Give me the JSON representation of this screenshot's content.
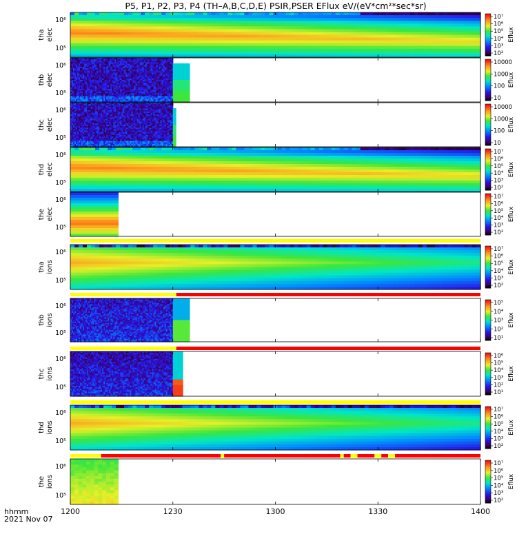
{
  "title": "P5, P1, P2, P3, P4 (TH–A,B,C,D,E) PSIR,PSER EFlux eV/(eV*cm²*sec*sr)",
  "footer": {
    "time_label": "hhmm",
    "date_label": "2021 Nov 07"
  },
  "chart_data": {
    "type": "heatmap",
    "xlabel": "hhmm",
    "x_range": [
      "12:00",
      "14:00"
    ],
    "x_ticks": [
      "1200",
      "1230",
      "1300",
      "1330",
      "1400"
    ],
    "colorbar_label": "Eflux",
    "panels": [
      {
        "id": "tha_elec",
        "label_top": "tha",
        "label_bottom": "elec",
        "y_ticks": [
          "10⁵",
          "10⁶"
        ],
        "cb_ticks": [
          "10²",
          "10³",
          "10⁴",
          "10⁵",
          "10⁶",
          "10⁷"
        ],
        "coverage_end": "14:00",
        "profile": "elec_full"
      },
      {
        "id": "thb_elec",
        "label_top": "thb",
        "label_bottom": "elec",
        "y_ticks": [
          "10⁵",
          "10⁶"
        ],
        "cb_ticks": [
          "10",
          "100",
          "1000",
          "10000"
        ],
        "coverage_end": "12:35",
        "profile": "low_noise"
      },
      {
        "id": "thc_elec",
        "label_top": "thc",
        "label_bottom": "elec",
        "y_ticks": [
          "10⁵",
          "10⁶"
        ],
        "cb_ticks": [
          "10",
          "100",
          "1000",
          "10000"
        ],
        "coverage_end": "12:31",
        "profile": "low_noise"
      },
      {
        "id": "thd_elec",
        "label_top": "thd",
        "label_bottom": "elec",
        "y_ticks": [
          "10⁵",
          "10⁶"
        ],
        "cb_ticks": [
          "10²",
          "10³",
          "10⁴",
          "10⁵",
          "10⁶",
          "10⁷"
        ],
        "coverage_end": "14:00",
        "profile": "elec_full"
      },
      {
        "id": "the_elec",
        "label_top": "the",
        "label_bottom": "elec",
        "y_ticks": [
          "10⁵",
          "10⁶"
        ],
        "cb_ticks": [
          "10²",
          "10³",
          "10⁴",
          "10⁵",
          "10⁶",
          "10⁷"
        ],
        "coverage_end": "12:14",
        "profile": "elec_partial"
      },
      {
        "id": "tha_ions",
        "label_top": "tha",
        "label_bottom": "ions",
        "y_ticks": [
          "10⁵",
          "10⁶"
        ],
        "cb_ticks": [
          "10²",
          "10³",
          "10⁴",
          "10⁵",
          "10⁶",
          "10⁷"
        ],
        "coverage_end": "14:00",
        "profile": "ion_full"
      },
      {
        "id": "thb_ions",
        "label_top": "thb",
        "label_bottom": "ions",
        "y_ticks": [
          "10⁵",
          "10⁶"
        ],
        "cb_ticks": [
          "10¹",
          "10²",
          "10³",
          "10⁴",
          "10⁵"
        ],
        "coverage_end": "12:35",
        "profile": "low_noise_ion"
      },
      {
        "id": "thc_ions",
        "label_top": "thc",
        "label_bottom": "ions",
        "y_ticks": [
          "10⁵",
          "10⁶"
        ],
        "cb_ticks": [
          "10¹",
          "10²",
          "10³",
          "10⁴",
          "10⁵",
          "10⁶"
        ],
        "coverage_end": "12:33",
        "profile": "low_noise_ion_c"
      },
      {
        "id": "thd_ions",
        "label_top": "thd",
        "label_bottom": "ions",
        "y_ticks": [
          "10⁵",
          "10⁶"
        ],
        "cb_ticks": [
          "10²",
          "10³",
          "10⁴",
          "10⁵",
          "10⁶",
          "10⁷"
        ],
        "coverage_end": "14:00",
        "profile": "ion_full"
      },
      {
        "id": "the_ions",
        "label_top": "the",
        "label_bottom": "ions",
        "y_ticks": [
          "10⁵",
          "10⁶"
        ],
        "cb_ticks": [
          "10²",
          "10³",
          "10⁴",
          "10⁵",
          "10⁶",
          "10⁷"
        ],
        "coverage_end": "12:14",
        "profile": "ion_partial"
      }
    ],
    "flag_bars": [
      {
        "after_panel": "the_elec",
        "segments": [
          {
            "from": "12:00",
            "to": "14:00",
            "color": "#ffff00"
          }
        ]
      },
      {
        "after_panel": "tha_ions",
        "segments": [
          {
            "from": "12:00",
            "to": "12:31",
            "color": "#ffff00"
          },
          {
            "from": "12:31",
            "to": "14:00",
            "color": "#ff0000"
          }
        ]
      },
      {
        "after_panel": "thb_ions",
        "segments": [
          {
            "from": "12:00",
            "to": "12:31",
            "color": "#ffff00"
          },
          {
            "from": "12:31",
            "to": "14:00",
            "color": "#ff0000"
          }
        ]
      },
      {
        "after_panel": "thc_ions",
        "segments": [
          {
            "from": "12:00",
            "to": "14:00",
            "color": "#ffff00"
          }
        ]
      },
      {
        "after_panel": "thd_ions",
        "segments": [
          {
            "from": "12:00",
            "to": "12:09",
            "color": "#ffff00"
          },
          {
            "from": "12:09",
            "to": "12:44",
            "color": "#ff0000"
          },
          {
            "from": "12:44",
            "to": "12:45",
            "color": "#ffff00"
          },
          {
            "from": "12:45",
            "to": "13:19",
            "color": "#ff0000"
          },
          {
            "from": "13:19",
            "to": "13:20",
            "color": "#ffff00"
          },
          {
            "from": "13:20",
            "to": "13:22",
            "color": "#ff0000"
          },
          {
            "from": "13:22",
            "to": "13:24",
            "color": "#ffff00"
          },
          {
            "from": "13:24",
            "to": "13:29",
            "color": "#ff0000"
          },
          {
            "from": "13:29",
            "to": "13:31",
            "color": "#ffff00"
          },
          {
            "from": "13:31",
            "to": "13:33",
            "color": "#ff0000"
          },
          {
            "from": "13:33",
            "to": "13:35",
            "color": "#ffff00"
          },
          {
            "from": "13:35",
            "to": "14:00",
            "color": "#ff0000"
          }
        ]
      }
    ]
  }
}
